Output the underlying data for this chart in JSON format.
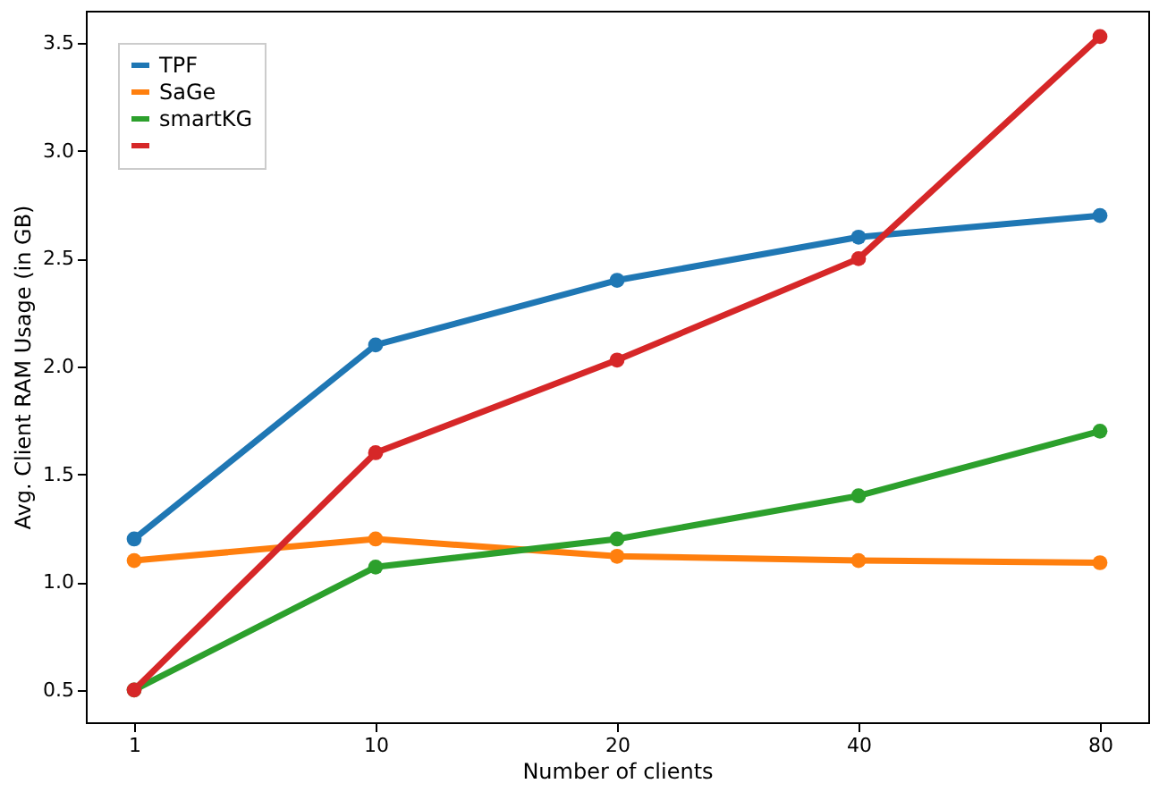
{
  "chart_data": {
    "type": "line",
    "xlabel": "Number of clients",
    "ylabel": "Avg. Client RAM Usage (in GB)",
    "categories": [
      "1",
      "10",
      "20",
      "40",
      "80"
    ],
    "series": [
      {
        "name": "TPF",
        "color": "#1f77b4",
        "values": [
          1.2,
          2.1,
          2.4,
          2.6,
          2.7
        ]
      },
      {
        "name": "SaGe",
        "color": "#ff7f0e",
        "values": [
          1.1,
          1.2,
          1.12,
          1.1,
          1.09
        ]
      },
      {
        "name": "smartKG",
        "color": "#2ca02c",
        "values": [
          0.5,
          1.07,
          1.2,
          1.4,
          1.7
        ]
      },
      {
        "color": "#d62728",
        "values": [
          0.5,
          1.6,
          2.03,
          2.5,
          3.53
        ]
      }
    ],
    "ylim": [
      0.35,
      3.65
    ],
    "yticks": [
      0.5,
      {
        "value": 1,
        "label": "1.0"
      },
      1.5,
      {
        "value": 2,
        "label": "2.0"
      },
      2.5,
      {
        "value": 3,
        "label": "3.0"
      },
      3.5
    ],
    "legend": "top left",
    "marker": "circle",
    "line_style": "solid",
    "grid": false
  }
}
